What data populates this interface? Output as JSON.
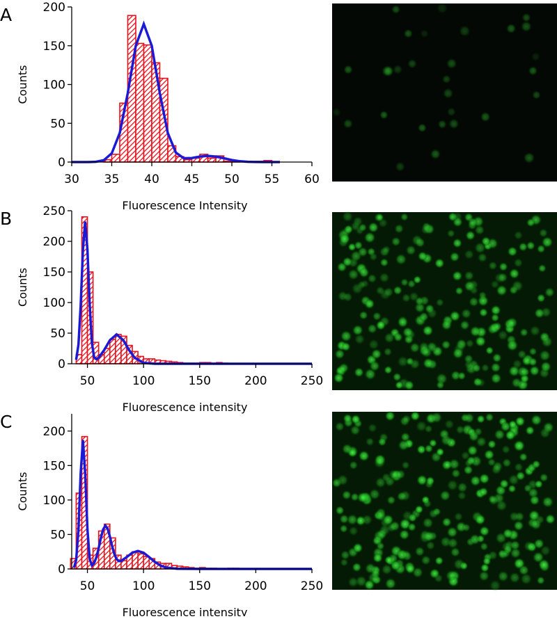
{
  "chart_data": [
    {
      "type": "histogram",
      "panel_label": "A",
      "xlabel": "Fluorescence Intensity",
      "ylabel": "Counts",
      "bins": [
        33,
        34,
        35,
        36,
        37,
        38,
        39,
        40,
        41,
        42,
        43,
        44,
        45,
        46,
        47,
        48,
        49,
        50,
        51,
        52,
        53,
        54,
        55,
        56
      ],
      "counts": [
        0,
        3,
        10,
        76,
        189,
        153,
        151,
        128,
        108,
        21,
        7,
        3,
        5,
        10,
        5,
        8,
        1,
        1,
        0,
        0,
        1,
        2,
        0
      ],
      "color": "#e8101a",
      "fit": {
        "color": "#1a1ad6",
        "x": [
          30,
          32,
          33,
          34,
          35,
          36,
          37,
          38,
          39,
          40,
          41,
          42,
          43,
          44,
          45,
          46,
          47,
          48,
          49,
          50,
          51,
          52,
          53,
          54,
          56
        ],
        "values": [
          0,
          0,
          0.4,
          2.3,
          11.2,
          37.5,
          89,
          150,
          178,
          150,
          89,
          37.5,
          12.3,
          4.9,
          5.2,
          7.1,
          8,
          7.1,
          4.9,
          2.6,
          1.1,
          0.4,
          0.1,
          0,
          0
        ]
      },
      "xlim": [
        30,
        60
      ],
      "ylim": [
        0,
        200
      ],
      "xticks": [
        30,
        35,
        40,
        45,
        50,
        55,
        60
      ],
      "yticks": [
        0,
        50,
        100,
        150,
        200
      ]
    },
    {
      "type": "histogram",
      "panel_label": "B",
      "xlabel": "Fluorescence intensity",
      "ylabel": "Counts",
      "bins": [
        40,
        45,
        50,
        55,
        60,
        65,
        70,
        75,
        80,
        85,
        90,
        95,
        100,
        105,
        110,
        115,
        120,
        125,
        130,
        135,
        140,
        145,
        150,
        155,
        160,
        165,
        170,
        175
      ],
      "counts": [
        15,
        240,
        150,
        35,
        15,
        25,
        40,
        48,
        45,
        30,
        20,
        12,
        8,
        8,
        6,
        5,
        4,
        3,
        2,
        1,
        1,
        1,
        2,
        2,
        1,
        2,
        1
      ],
      "color": "#e8101a",
      "fit": {
        "color": "#1a1ad6",
        "x": [
          40,
          42,
          44,
          46,
          48,
          50,
          52,
          54,
          56,
          58,
          60,
          65,
          70,
          76,
          82,
          87,
          92,
          100,
          110,
          130,
          250
        ],
        "values": [
          6.6,
          31.4,
          95.4,
          185.8,
          232.4,
          186.5,
          96.8,
          33.8,
          10.7,
          7.4,
          9.9,
          22.7,
          38.4,
          48,
          38.4,
          22.7,
          9.9,
          1.4,
          0,
          0,
          0
        ]
      },
      "xlim": [
        36,
        250
      ],
      "ylim": [
        0,
        250
      ],
      "xticks": [
        50,
        100,
        150,
        200,
        250
      ],
      "yticks": [
        0,
        50,
        100,
        150,
        200,
        250
      ]
    },
    {
      "type": "histogram",
      "panel_label": "C",
      "xlabel": "Fluorescence intensity",
      "ylabel": "Counts",
      "bins": [
        35,
        40,
        45,
        50,
        55,
        60,
        65,
        70,
        75,
        80,
        85,
        90,
        95,
        100,
        105,
        110,
        115,
        120,
        125,
        130,
        135,
        140,
        145,
        150,
        155,
        160,
        165,
        170,
        175,
        180,
        185
      ],
      "counts": [
        15,
        110,
        192,
        20,
        30,
        55,
        65,
        45,
        20,
        12,
        20,
        25,
        22,
        18,
        15,
        10,
        8,
        8,
        5,
        4,
        3,
        2,
        1,
        2,
        1,
        1,
        0,
        0,
        1,
        1
      ],
      "color": "#e8101a",
      "fit": {
        "color": "#1a1ad6",
        "x": [
          38,
          40,
          42,
          44,
          46,
          48,
          50,
          52,
          54,
          56,
          58,
          60,
          62,
          64,
          66,
          68,
          70,
          72,
          74,
          76,
          78,
          80,
          85,
          90,
          95,
          100,
          105,
          110,
          115,
          120,
          130,
          150,
          250
        ],
        "values": [
          1.6,
          13,
          57.2,
          139,
          187,
          139.1,
          57.6,
          14.2,
          5.1,
          8.4,
          17.2,
          30.2,
          45,
          57.2,
          62.8,
          58.5,
          47,
          33.1,
          21.4,
          14.3,
          11.4,
          11.5,
          17.2,
          23.5,
          26,
          23.5,
          17.2,
          10.3,
          5,
          2,
          0.2,
          0,
          0
        ]
      },
      "xlim": [
        36,
        250
      ],
      "ylim": [
        0,
        225
      ],
      "xticks": [
        50,
        100,
        150,
        200,
        250
      ],
      "yticks": [
        0,
        50,
        100,
        150,
        200
      ]
    }
  ]
}
